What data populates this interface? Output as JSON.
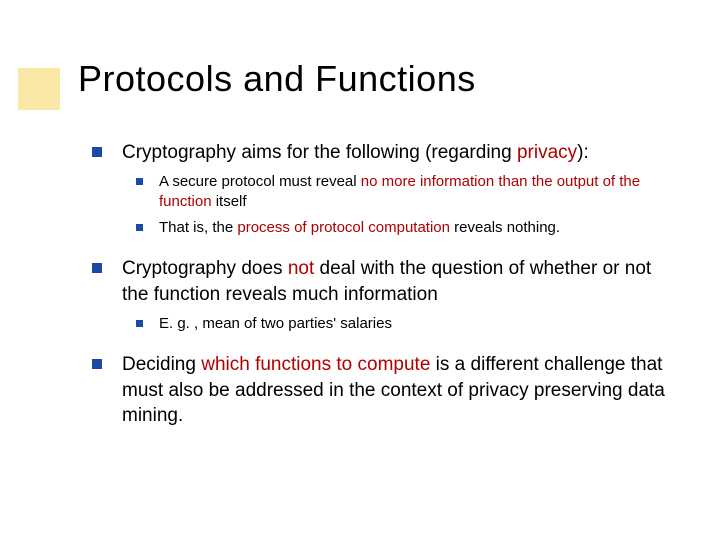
{
  "slide": {
    "title": "Protocols and Functions",
    "accent_color": "#f2c000",
    "bullet_color": "#1a4ba0",
    "emphasis_color": "#b00000",
    "background_color": "#ffffff",
    "title_fontsize": 36,
    "body_fontsize_l1": 19,
    "body_fontsize_l2": 15
  },
  "b1": {
    "pre": "Cryptography aims for the following (regarding ",
    "em": "privacy",
    "post": "):"
  },
  "b1a": {
    "pre": "A secure protocol must reveal ",
    "em1": "no more information than the output of the function",
    "post": " itself"
  },
  "b1b": {
    "pre": "That is, the ",
    "em": "process of protocol computation",
    "post": " reveals nothing."
  },
  "b2": {
    "pre": "Cryptography does ",
    "em": "not",
    "post": " deal with the question of whether or not the function reveals much information"
  },
  "b2a": {
    "text": "E. g. , mean of two parties' salaries"
  },
  "b3": {
    "pre": "Deciding ",
    "em": "which functions to compute",
    "post": " is a different challenge that must also be addressed in the context of privacy preserving data mining."
  }
}
